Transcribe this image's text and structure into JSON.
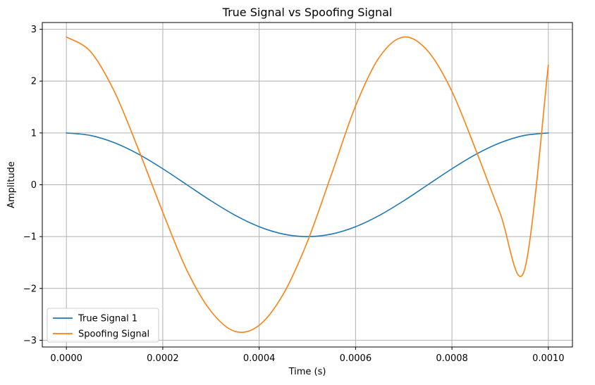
{
  "chart_data": {
    "type": "line",
    "title": "True Signal vs Spoofing Signal",
    "xlabel": "Time (s)",
    "ylabel": "Amplitude",
    "xlim": [
      -5e-05,
      0.00105
    ],
    "ylim": [
      -3.13,
      3.13
    ],
    "x_ticks": [
      0,
      0.0002,
      0.0004,
      0.0006,
      0.0008,
      0.001
    ],
    "x_tick_labels": [
      "0.0000",
      "0.0002",
      "0.0004",
      "0.0006",
      "0.0008",
      "0.0010"
    ],
    "y_ticks": [
      -3,
      -2,
      -1,
      0,
      1,
      2,
      3
    ],
    "y_tick_labels": [
      "−3",
      "−2",
      "−1",
      "0",
      "1",
      "2",
      "3"
    ],
    "grid": true,
    "legend_position": "lower-left",
    "x": [
      0,
      5e-05,
      0.0001,
      0.00015,
      0.0002,
      0.00025,
      0.0003,
      0.00035,
      0.0004,
      0.00045,
      0.0005,
      0.00055,
      0.0006,
      0.00065,
      0.0007,
      0.00075,
      0.0008,
      0.00085,
      0.0009,
      0.00095,
      0.001
    ],
    "series": [
      {
        "name": "True Signal 1",
        "color": "#1f77b4",
        "values": [
          1.0,
          0.951,
          0.809,
          0.588,
          0.309,
          0.0,
          -0.309,
          -0.588,
          -0.809,
          -0.951,
          -1.0,
          -0.951,
          -0.809,
          -0.588,
          -0.309,
          0.0,
          0.309,
          0.588,
          0.809,
          0.951,
          1.0
        ]
      },
      {
        "name": "Spoofing Signal",
        "color": "#ff7f0e",
        "values": [
          2.85,
          2.57,
          1.79,
          0.67,
          -0.53,
          -1.65,
          -2.44,
          -2.83,
          -2.71,
          -2.11,
          -1.1,
          0.2,
          1.52,
          2.47,
          2.85,
          2.58,
          1.8,
          0.66,
          -0.55,
          -1.66,
          2.31
        ]
      }
    ]
  }
}
